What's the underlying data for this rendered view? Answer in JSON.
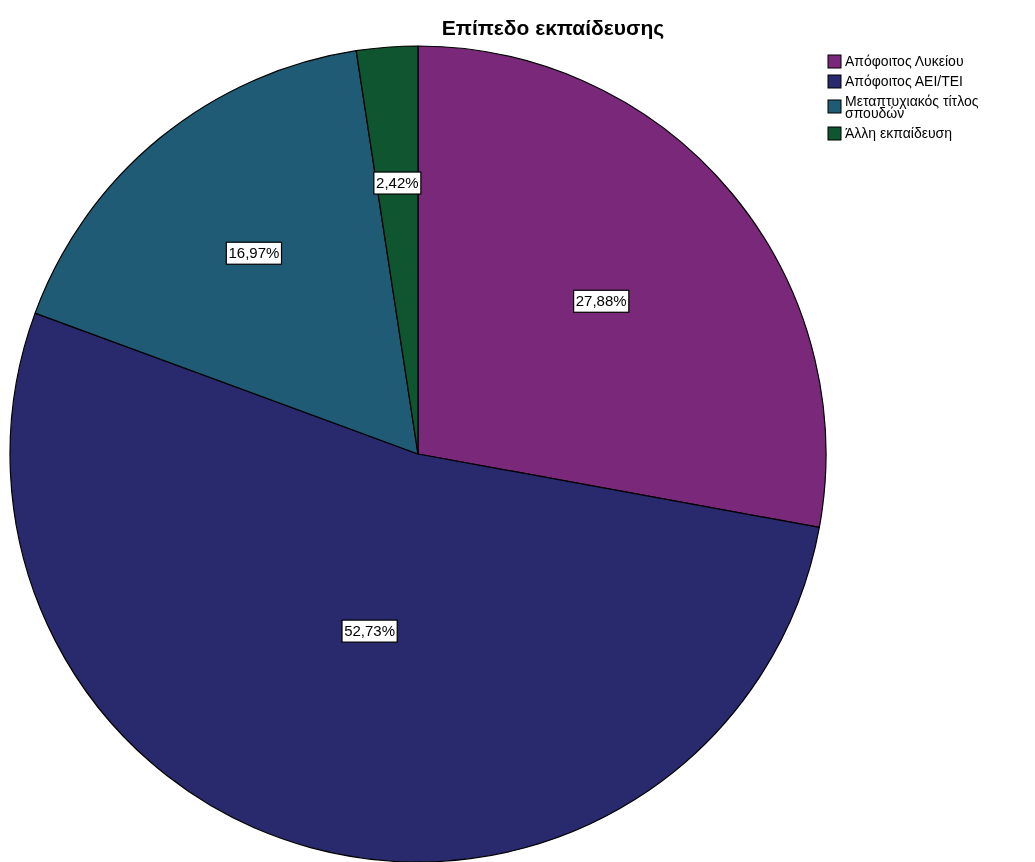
{
  "chart_data": {
    "type": "pie",
    "title": "Επίπεδο εκπαίδευσης",
    "categories": [
      "Απόφοιτος Λυκείου",
      "Απόφοιτος ΑΕΙ/ΤΕΙ",
      "Μεταπτυχιακός τίτλος σπουδών",
      "Άλλη εκπαίδευση"
    ],
    "values": [
      27.88,
      52.73,
      16.97,
      2.42
    ],
    "colors": [
      "#7a2879",
      "#29296e",
      "#1f5b74",
      "#0f5530"
    ],
    "value_labels": [
      "27,88%",
      "52,73%",
      "16,97%",
      "2,42%"
    ],
    "legend": "top right"
  }
}
